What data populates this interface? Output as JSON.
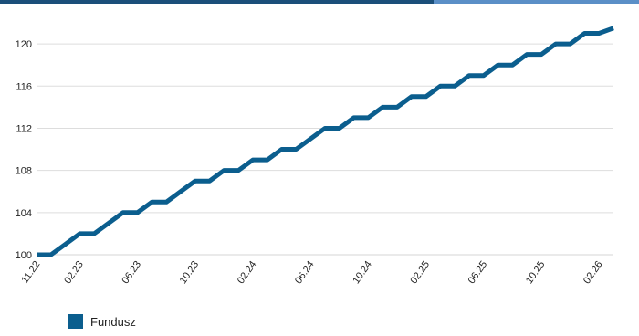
{
  "theme": {
    "series_color": "#0b5e8e",
    "top_bar_dark": "#1b4f7a",
    "top_bar_light": "#5b8fc7",
    "grid_color": "#dddddd"
  },
  "chart_data": {
    "type": "line",
    "title": "",
    "xlabel": "",
    "ylabel": "",
    "ylim": [
      100,
      122
    ],
    "yticks": [
      100,
      104,
      108,
      112,
      116,
      120
    ],
    "xticks": [
      "11.22",
      "02.23",
      "06.23",
      "10.23",
      "02.24",
      "06.24",
      "10.24",
      "02.25",
      "06.25",
      "10.25",
      "02.26"
    ],
    "grid": true,
    "legend_position": "bottom-left",
    "series": [
      {
        "name": "Fundusz",
        "x": [
          "11.22",
          "12.22",
          "01.23",
          "02.23",
          "03.23",
          "04.23",
          "05.23",
          "06.23",
          "07.23",
          "08.23",
          "09.23",
          "10.23",
          "11.23",
          "12.23",
          "01.24",
          "02.24",
          "03.24",
          "04.24",
          "05.24",
          "06.24",
          "07.24",
          "08.24",
          "09.24",
          "10.24",
          "11.24",
          "12.24",
          "01.25",
          "02.25",
          "03.25",
          "04.25",
          "05.25",
          "06.25",
          "07.25",
          "08.25",
          "09.25",
          "10.25",
          "11.25",
          "12.25",
          "01.26",
          "02.26",
          "03.26"
        ],
        "values": [
          100,
          100,
          101,
          102,
          102,
          103,
          104,
          104,
          105,
          105,
          106,
          107,
          107,
          108,
          108,
          109,
          109,
          110,
          110,
          111,
          112,
          112,
          113,
          113,
          114,
          114,
          115,
          115,
          116,
          116,
          117,
          117,
          118,
          118,
          119,
          119,
          120,
          120,
          121,
          121,
          121.5
        ]
      }
    ]
  }
}
